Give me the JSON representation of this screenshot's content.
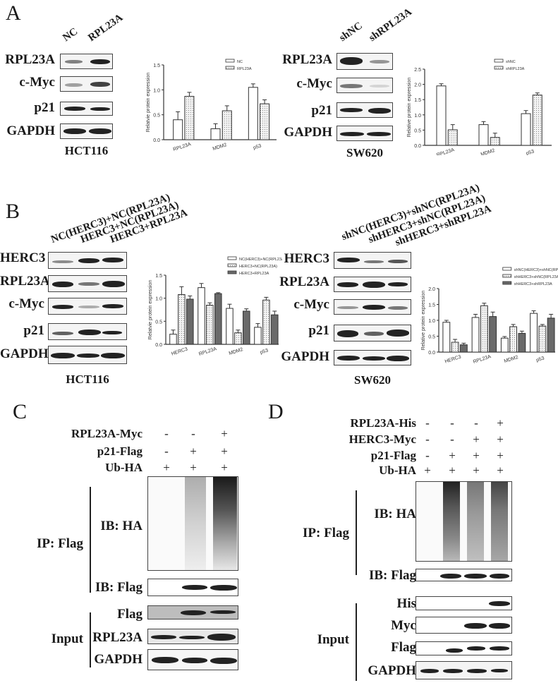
{
  "panels": {
    "A": {
      "letter": "A",
      "left": {
        "cell_line": "HCT116",
        "lanes": [
          "NC",
          "RPL23A"
        ],
        "rows": [
          "RPL23A",
          "c-Myc",
          "p21",
          "GAPDH"
        ]
      },
      "right": {
        "cell_line": "SW620",
        "lanes": [
          "shNC",
          "shRPL23A"
        ],
        "rows": [
          "RPL23A",
          "c-Myc",
          "p21",
          "GAPDH"
        ]
      }
    },
    "B": {
      "letter": "B",
      "left": {
        "cell_line": "HCT116",
        "lanes": [
          "NC(HERC3)+NC(RPL23A)",
          "HERC3+NC(RPL23A)",
          "HERC3+RPL23A"
        ],
        "rows": [
          "HERC3",
          "RPL23A",
          "c-Myc",
          "p21",
          "GAPDH"
        ]
      },
      "right": {
        "cell_line": "SW620",
        "lanes": [
          "shNC(HERC3)+shNC(RPL23A)",
          "shHERC3+shNC(RPL23A)",
          "shHERC3+shRPL23A"
        ],
        "rows": [
          "HERC3",
          "RPL23A",
          "c-Myc",
          "p21",
          "GAPDH"
        ]
      }
    },
    "C": {
      "letter": "C",
      "conditions": [
        {
          "label": "RPL23A-Myc",
          "signs": [
            "-",
            "-",
            "+"
          ]
        },
        {
          "label": "p21-Flag",
          "signs": [
            "-",
            "+",
            "+"
          ]
        },
        {
          "label": "Ub-HA",
          "signs": [
            "+",
            "+",
            "+"
          ]
        }
      ],
      "ip_group": "IP: Flag",
      "ip_rows": [
        "IB: HA",
        "IB: Flag"
      ],
      "input_group": "Input",
      "input_rows": [
        "Flag",
        "RPL23A",
        "GAPDH"
      ]
    },
    "D": {
      "letter": "D",
      "conditions": [
        {
          "label": "RPL23A-His",
          "signs": [
            "-",
            "-",
            "-",
            "+"
          ]
        },
        {
          "label": "HERC3-Myc",
          "signs": [
            "-",
            "-",
            "+",
            "+"
          ]
        },
        {
          "label": "p21-Flag",
          "signs": [
            "-",
            "+",
            "+",
            "+"
          ]
        },
        {
          "label": "Ub-HA",
          "signs": [
            "+",
            "+",
            "+",
            "+"
          ]
        }
      ],
      "ip_group": "IP: Flag",
      "ip_rows": [
        "IB: HA",
        "IB: Flag"
      ],
      "input_group": "Input",
      "input_rows": [
        "His",
        "Myc",
        "Flag",
        "GAPDH"
      ]
    }
  },
  "chart_data": [
    {
      "id": "A_HCT116",
      "type": "bar",
      "title": "",
      "xlabel": "",
      "ylabel": "Relatvie protein expression",
      "ylim": [
        0,
        1.5
      ],
      "yticks": [
        "0.0",
        "0.5",
        "1.0",
        "1.5"
      ],
      "categories": [
        "RPL23A",
        "MDM2",
        "p53"
      ],
      "series": [
        {
          "name": "NC",
          "values": [
            0.4,
            0.22,
            1.05
          ],
          "errors": [
            0.16,
            0.1,
            0.07
          ]
        },
        {
          "name": "RPL23A",
          "values": [
            0.87,
            0.58,
            0.72
          ],
          "errors": [
            0.08,
            0.1,
            0.08
          ]
        }
      ],
      "significance": [
        [
          "*"
        ],
        [
          "*"
        ],
        [
          "**"
        ]
      ],
      "legend_position": "top-right",
      "grid": false
    },
    {
      "id": "A_SW620",
      "type": "bar",
      "title": "",
      "xlabel": "",
      "ylabel": "Relative protein expression",
      "ylim": [
        0,
        2.5
      ],
      "yticks": [
        "0.0",
        "0.5",
        "1.0",
        "1.5",
        "2.0",
        "2.5"
      ],
      "categories": [
        "RPL23A",
        "MDM2",
        "p53"
      ],
      "series": [
        {
          "name": "shNC",
          "values": [
            1.95,
            0.68,
            1.04
          ],
          "errors": [
            0.07,
            0.1,
            0.1
          ]
        },
        {
          "name": "shRPL23A",
          "values": [
            0.51,
            0.26,
            1.65
          ],
          "errors": [
            0.17,
            0.14,
            0.07
          ]
        }
      ],
      "significance": [
        [
          "***"
        ],
        [
          "*"
        ],
        [
          "**"
        ]
      ],
      "legend_position": "top-right",
      "grid": false
    },
    {
      "id": "B_HCT116",
      "type": "bar",
      "title": "",
      "xlabel": "",
      "ylabel": "Relatvie protein expression",
      "ylim": [
        0,
        1.5
      ],
      "yticks": [
        "0.0",
        "0.5",
        "1.0",
        "1.5"
      ],
      "categories": [
        "HERC3",
        "RPL23A",
        "MDM2",
        "p53"
      ],
      "series": [
        {
          "name": "NC(HERC3)+NC(RPL23A)",
          "values": [
            0.22,
            1.23,
            0.78,
            0.37
          ],
          "errors": [
            0.09,
            0.09,
            0.09,
            0.08
          ]
        },
        {
          "name": "HERC3+NC(RPL23A)",
          "values": [
            1.08,
            0.85,
            0.25,
            0.96
          ],
          "errors": [
            0.17,
            0.05,
            0.06,
            0.06
          ]
        },
        {
          "name": "HERC3+RPL23A",
          "values": [
            0.98,
            1.1,
            0.72,
            0.64
          ],
          "errors": [
            0.07,
            0.02,
            0.05,
            0.08
          ]
        }
      ],
      "legend_position": "top-right",
      "grid": false
    },
    {
      "id": "B_SW620",
      "type": "bar",
      "title": "",
      "xlabel": "",
      "ylabel": "Relative protein expression",
      "ylim": [
        0,
        2.0
      ],
      "yticks": [
        "0.0",
        "0.5",
        "1.0",
        "1.5",
        "2.0"
      ],
      "categories": [
        "HERC3",
        "RPL23A",
        "MDM2",
        "p53"
      ],
      "series": [
        {
          "name": "shNC(HERC3)+shNC(RPL23A)",
          "values": [
            0.94,
            1.09,
            0.44,
            1.22
          ],
          "errors": [
            0.06,
            0.1,
            0.05,
            0.08
          ]
        },
        {
          "name": "shHERC3+shNC(RPL23A)",
          "values": [
            0.31,
            1.46,
            0.8,
            0.82
          ],
          "errors": [
            0.09,
            0.08,
            0.07,
            0.05
          ]
        },
        {
          "name": "shHERC3+shRPL23A",
          "values": [
            0.23,
            1.12,
            0.59,
            1.07
          ],
          "errors": [
            0.05,
            0.14,
            0.07,
            0.12
          ]
        }
      ],
      "significance_note": "ns",
      "legend_position": "top-right",
      "grid": false
    }
  ]
}
